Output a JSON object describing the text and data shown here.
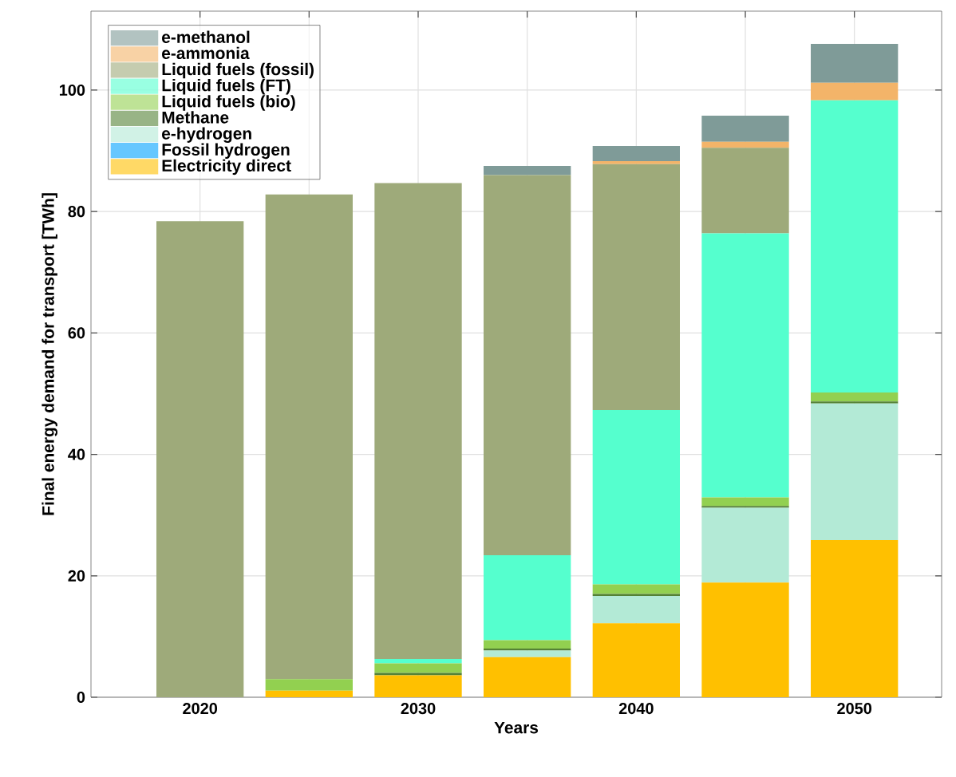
{
  "chart_data": {
    "type": "bar",
    "stacked": true,
    "xlabel": "Years",
    "ylabel": "Final energy demand for transport [TWh]",
    "x": [
      2020,
      2025,
      2030,
      2035,
      2040,
      2045,
      2050
    ],
    "xlim": [
      2015,
      2054
    ],
    "ylim": [
      0,
      113
    ],
    "xticks": [
      2020,
      {
        "value": 2025,
        "label": null
      },
      2030,
      {
        "value": 2035,
        "label": null
      },
      2040,
      {
        "value": 2045,
        "label": null
      },
      2050
    ],
    "yticks": [
      0,
      20,
      40,
      60,
      80,
      100
    ],
    "grid": true,
    "legend": "top left",
    "series": [
      {
        "name": "Electricity direct",
        "color": "#ffc000",
        "values": [
          0,
          1.1,
          3.6,
          6.6,
          12.2,
          18.9,
          25.9
        ]
      },
      {
        "name": "Fossil hydrogen",
        "color": "#00a2ff",
        "values": [
          0,
          0,
          0,
          0,
          0,
          0,
          0
        ]
      },
      {
        "name": "e-hydrogen",
        "color": "#b3ead6",
        "values": [
          0,
          0,
          0,
          1.1,
          4.5,
          12.3,
          22.5
        ]
      },
      {
        "name": "Methane",
        "color": "#548235",
        "values": [
          0,
          0,
          0.4,
          0.3,
          0.3,
          0.3,
          0.3
        ]
      },
      {
        "name": "Liquid fuels (bio)",
        "color": "#92d050",
        "values": [
          0,
          1.9,
          1.6,
          1.4,
          1.6,
          1.4,
          1.5
        ]
      },
      {
        "name": "Liquid fuels (FT)",
        "color": "#55ffce",
        "values": [
          0,
          0,
          0.7,
          14.0,
          28.7,
          43.5,
          48.1
        ]
      },
      {
        "name": "Liquid fuels (fossil)",
        "color": "#9eaa7a",
        "values": [
          78.4,
          79.8,
          78.4,
          62.6,
          40.5,
          14.1,
          0
        ]
      },
      {
        "name": "e-ammonia",
        "color": "#f3b469",
        "values": [
          0,
          0,
          0,
          0,
          0.5,
          1.0,
          2.9
        ]
      },
      {
        "name": "e-methanol",
        "color": "#7f9b98",
        "values": [
          0,
          0,
          0,
          1.5,
          2.5,
          4.3,
          6.4
        ]
      }
    ]
  }
}
